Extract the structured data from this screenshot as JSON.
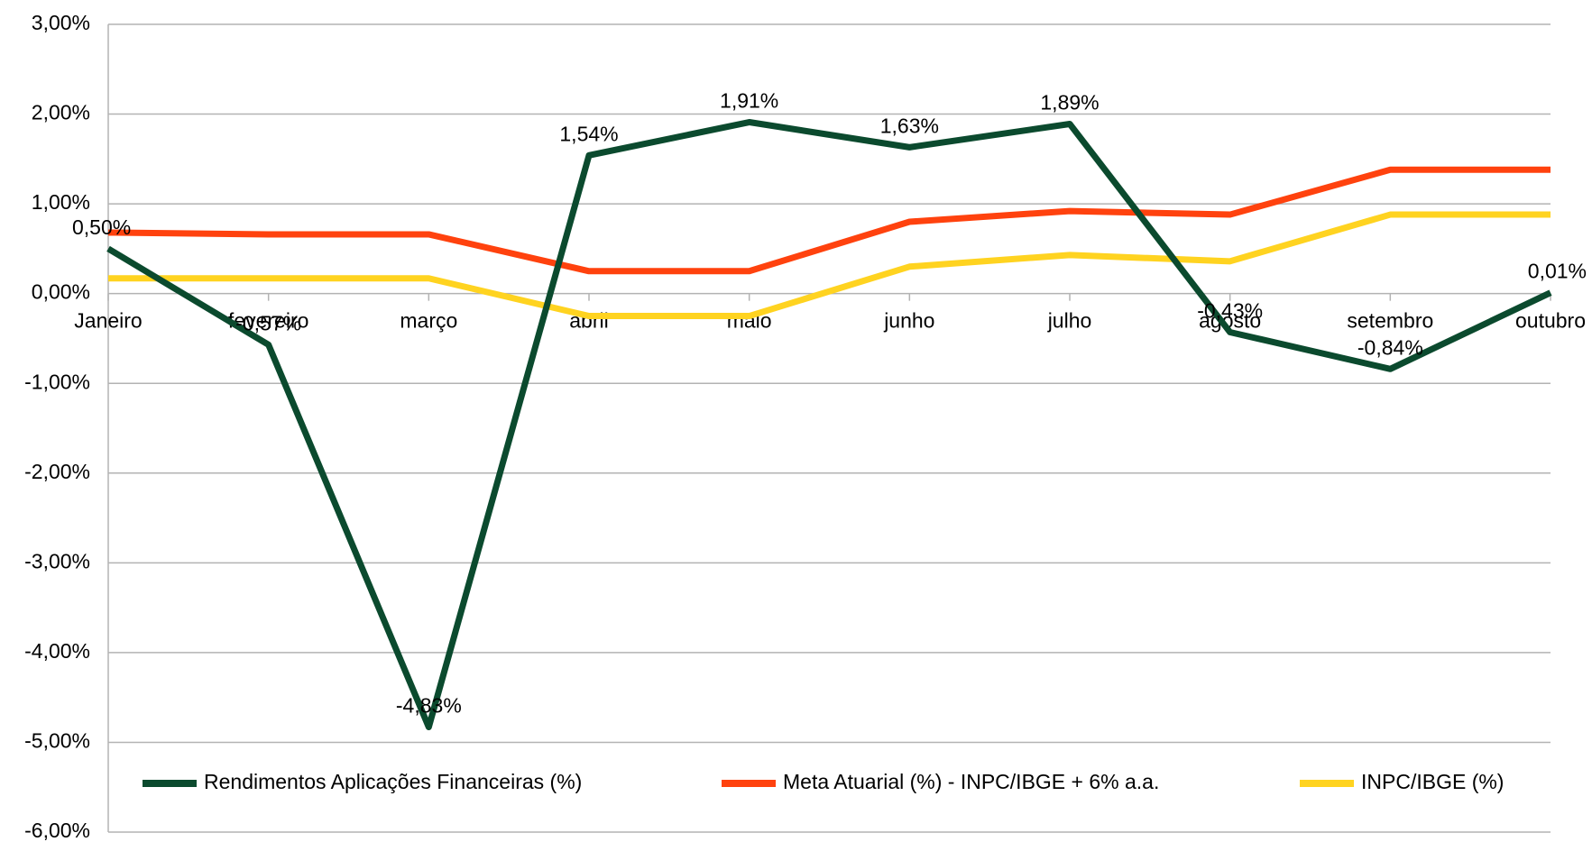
{
  "chart_data": {
    "type": "line",
    "categories": [
      "Janeiro",
      "fevereiro",
      "março",
      "abril",
      "maio",
      "junho",
      "julho",
      "agosto",
      "setembro",
      "outubro"
    ],
    "series": [
      {
        "name": "Rendimentos Aplicações Financeiras (%)",
        "color": "#0b4a2e",
        "values": [
          0.5,
          -0.57,
          -4.83,
          1.54,
          1.91,
          1.63,
          1.89,
          -0.43,
          -0.84,
          0.01
        ],
        "value_labels": [
          "0,50%",
          "-0,57%",
          "-4,83%",
          "1,54%",
          "1,91%",
          "1,63%",
          "1,89%",
          "-0,43%",
          "-0,84%",
          "0,01%"
        ]
      },
      {
        "name": "Meta Atuarial (%) - INPC/IBGE + 6% a.a.",
        "color": "#ff420e",
        "values": [
          0.68,
          0.66,
          0.66,
          0.25,
          0.25,
          0.8,
          0.92,
          0.88,
          1.38,
          1.38
        ]
      },
      {
        "name": "INPC/IBGE (%)",
        "color": "#ffd320",
        "values": [
          0.17,
          0.17,
          0.17,
          -0.25,
          -0.25,
          0.3,
          0.43,
          0.36,
          0.88,
          0.88
        ]
      }
    ],
    "ylim": [
      -6,
      3
    ],
    "yticks": [
      {
        "value": 3,
        "label": "3,00%"
      },
      {
        "value": 2,
        "label": "2,00%"
      },
      {
        "value": 1,
        "label": "1,00%"
      },
      {
        "value": 0,
        "label": "0,00%"
      },
      {
        "value": -1,
        "label": "-1,00%"
      },
      {
        "value": -2,
        "label": "-2,00%"
      },
      {
        "value": -3,
        "label": "-3,00%"
      },
      {
        "value": -4,
        "label": "-4,00%"
      },
      {
        "value": -5,
        "label": "-5,00%"
      },
      {
        "value": -6,
        "label": "-6,00%"
      }
    ],
    "grid": true,
    "legend": "bottom"
  }
}
